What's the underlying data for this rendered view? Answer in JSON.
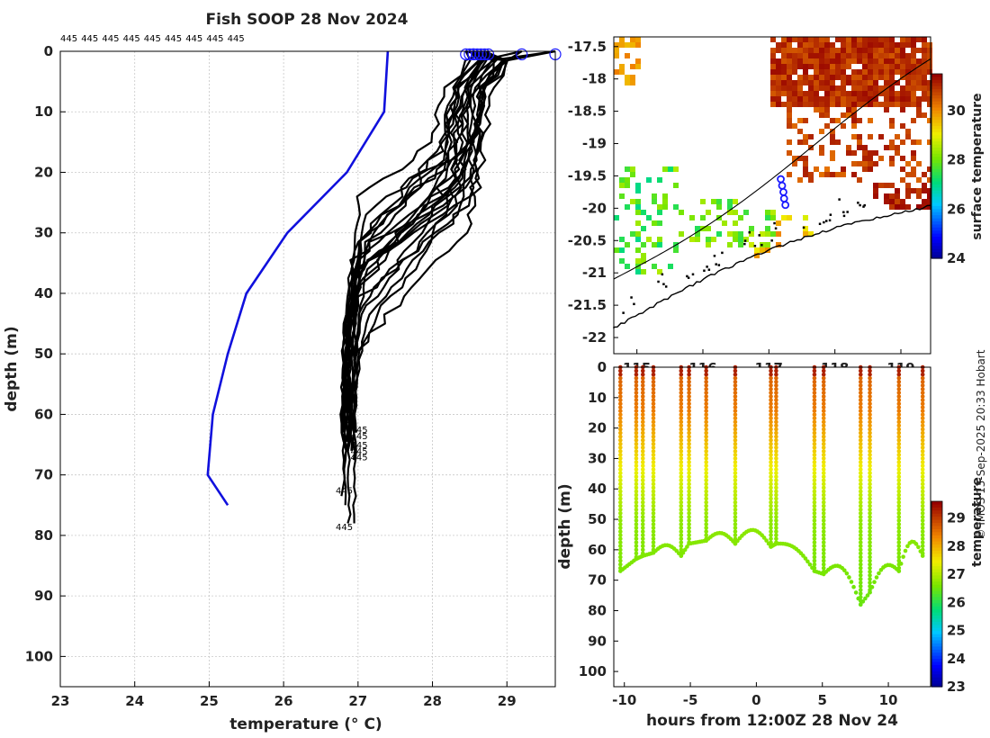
{
  "figure_title": "Fish SOOP 28 Nov 2024",
  "watermark": "© IMOS 13-Sep-2025 20:33 Hobart",
  "id_label": "445",
  "colors": {
    "profile_line": "#000000",
    "climatology_line": "#1010dd",
    "marker": "#1a1aff",
    "land_shade": "#ffffff",
    "sst_hot": "#b00000"
  },
  "chart_data": [
    {
      "type": "line",
      "name": "profiles",
      "title": "Fish SOOP 28 Nov 2024",
      "xlabel": "temperature (° C)",
      "ylabel": "depth (m)",
      "xlim": [
        23,
        29.65
      ],
      "ylim": [
        105,
        0
      ],
      "xticks": [
        "23",
        "24",
        "25",
        "26",
        "27",
        "28",
        "29"
      ],
      "yticks": [
        "0",
        "10",
        "20",
        "30",
        "40",
        "50",
        "60",
        "70",
        "80",
        "90",
        "100"
      ],
      "top_labels": [
        "445",
        "445",
        "445",
        "445",
        "445",
        "445",
        "445",
        "445",
        "445"
      ],
      "climatology": {
        "name": "climatology",
        "x": [
          27.4,
          27.35,
          26.85,
          26.05,
          25.5,
          25.25,
          25.05,
          24.98,
          25.25
        ],
        "y": [
          0,
          10,
          20,
          30,
          40,
          50,
          60,
          70,
          75
        ]
      },
      "profile_params": {
        "surface_temps": [
          28.55,
          28.6,
          28.75,
          29.2,
          29.65,
          28.5,
          28.45,
          28.65,
          28.55,
          28.7
        ],
        "bottom_depths": [
          62,
          63,
          64,
          65,
          66,
          67,
          74,
          78
        ]
      },
      "end_labels": [
        {
          "text": "445",
          "x": 26.9,
          "y": 62.5
        },
        {
          "text": "445",
          "x": 26.9,
          "y": 63.5
        },
        {
          "text": "445",
          "x": 26.9,
          "y": 65
        },
        {
          "text": "445",
          "x": 26.9,
          "y": 66
        },
        {
          "text": "445",
          "x": 26.9,
          "y": 67
        },
        {
          "text": "445",
          "x": 26.7,
          "y": 72.5
        },
        {
          "text": "445",
          "x": 26.7,
          "y": 78.5
        }
      ]
    },
    {
      "type": "heatmap",
      "name": "sst-map",
      "colorbar_label": "surface temperature",
      "colorbar_ticks": [
        "30",
        "28",
        "26",
        "24"
      ],
      "colorbar_range": [
        24,
        31.5
      ],
      "lon_ticks": [
        "115",
        "116",
        "117",
        "118",
        "119"
      ],
      "lat_ticks": [
        "-17.5",
        "-18",
        "-18.5",
        "-19",
        "-19.5",
        "-20",
        "-20.5",
        "-21",
        "-21.5",
        "-22"
      ],
      "lat_range": [
        -22.25,
        -17.35
      ],
      "lon_range": [
        114.65,
        119.45
      ],
      "track": {
        "lon": [
          117.18,
          117.2,
          117.22,
          117.23,
          117.25
        ],
        "lat": [
          -19.55,
          -19.65,
          -19.75,
          -19.85,
          -19.95
        ]
      }
    },
    {
      "type": "scatter",
      "name": "depth-time",
      "xlabel": "hours from 12:00Z 28 Nov 24",
      "ylabel": "depth (m)",
      "xlim": [
        -10.8,
        13.2
      ],
      "ylim": [
        105,
        0
      ],
      "xticks": [
        "-10",
        "-5",
        "0",
        "5",
        "10"
      ],
      "yticks": [
        "0",
        "10",
        "20",
        "30",
        "40",
        "50",
        "60",
        "70",
        "80",
        "90",
        "100"
      ],
      "colorbar_label": "temperature",
      "colorbar_ticks": [
        "29",
        "28",
        "27",
        "26",
        "25",
        "24",
        "23"
      ],
      "colorbar_range": [
        23,
        29.6
      ],
      "casts": [
        {
          "t": -10.3,
          "bottom": 67
        },
        {
          "t": -9.1,
          "bottom": 63
        },
        {
          "t": -8.6,
          "bottom": 62
        },
        {
          "t": -7.8,
          "bottom": 61
        },
        {
          "t": -5.7,
          "bottom": 62
        },
        {
          "t": -5.1,
          "bottom": 58
        },
        {
          "t": -3.8,
          "bottom": 57
        },
        {
          "t": -1.6,
          "bottom": 58
        },
        {
          "t": 1.1,
          "bottom": 59
        },
        {
          "t": 1.5,
          "bottom": 58
        },
        {
          "t": 4.4,
          "bottom": 67
        },
        {
          "t": 5.1,
          "bottom": 68
        },
        {
          "t": 7.9,
          "bottom": 78
        },
        {
          "t": 8.6,
          "bottom": 74
        },
        {
          "t": 10.8,
          "bottom": 67
        },
        {
          "t": 12.6,
          "bottom": 62
        }
      ]
    }
  ]
}
